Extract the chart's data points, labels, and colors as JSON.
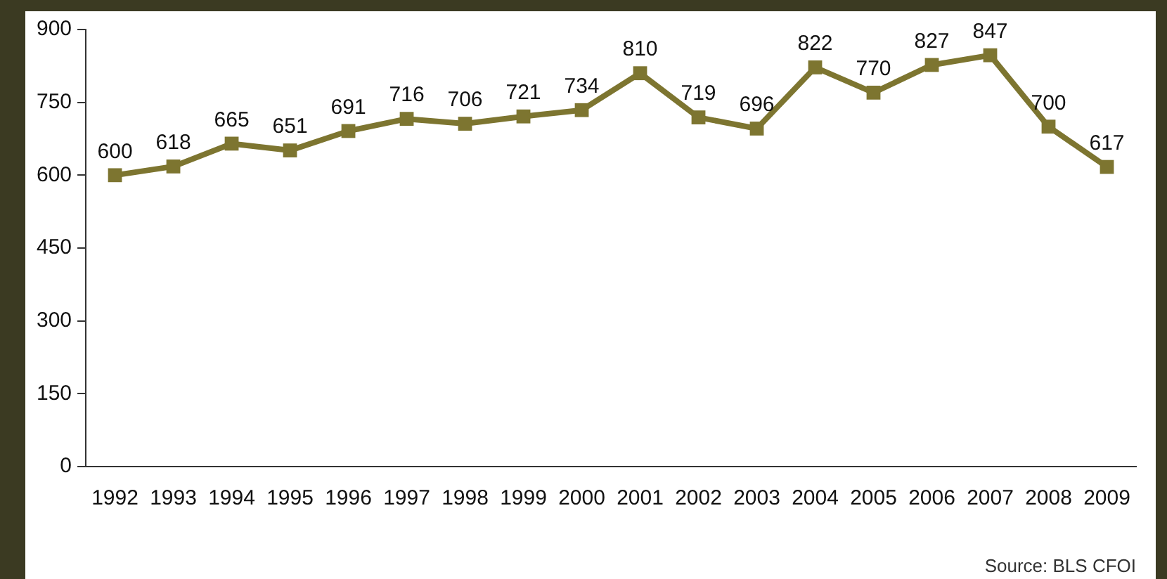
{
  "chart_data": {
    "type": "line",
    "categories": [
      "1992",
      "1993",
      "1994",
      "1995",
      "1996",
      "1997",
      "1998",
      "1999",
      "2000",
      "2001",
      "2002",
      "2003",
      "2004",
      "2005",
      "2006",
      "2007",
      "2008",
      "2009"
    ],
    "series": [
      {
        "color": "#7d7530",
        "values": [
          600,
          618,
          665,
          651,
          691,
          716,
          706,
          721,
          734,
          810,
          719,
          696,
          822,
          770,
          827,
          847,
          700,
          617
        ]
      }
    ],
    "ylim": [
      0,
      900
    ],
    "yticks": [
      0,
      150,
      300,
      450,
      600,
      750,
      900
    ],
    "grid": false,
    "legend": false,
    "marker": "square",
    "line_style": "solid",
    "data_labels": true,
    "annotations": [
      "Source:  BLS CFOI"
    ]
  }
}
